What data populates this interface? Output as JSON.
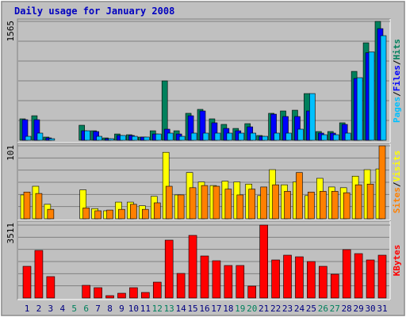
{
  "chart_data": [
    {
      "type": "bar",
      "title": "Daily usage for January 2008",
      "ylim": [
        0,
        1565
      ],
      "yticks": [
        1565
      ],
      "legend_separator": "/",
      "series": [
        {
          "name": "Hits",
          "color": "#00805c",
          "values": [
            282,
            323,
            42,
            0,
            0,
            198,
            125,
            31,
            83,
            73,
            42,
            125,
            782,
            125,
            355,
            407,
            282,
            209,
            156,
            219,
            63,
            355,
            386,
            396,
            615,
            115,
            115,
            230,
            907,
            1283,
            1565
          ]
        },
        {
          "name": "Files",
          "color": "#0000ff",
          "values": [
            271,
            271,
            31,
            0,
            0,
            125,
            115,
            21,
            63,
            63,
            42,
            83,
            146,
            83,
            323,
            386,
            230,
            156,
            125,
            177,
            52,
            344,
            313,
            313,
            386,
            94,
            94,
            209,
            814,
            1152,
            1470
          ]
        },
        {
          "name": "Pages",
          "color": "#00c0ff",
          "values": [
            52,
            94,
            21,
            0,
            0,
            125,
            52,
            21,
            63,
            52,
            42,
            83,
            94,
            52,
            94,
            94,
            94,
            94,
            94,
            94,
            52,
            94,
            94,
            146,
            615,
            73,
            73,
            94,
            824,
            1163,
            1377
          ]
        }
      ]
    },
    {
      "type": "bar",
      "ylim": [
        0,
        101
      ],
      "yticks": [
        101
      ],
      "legend_separator": "/",
      "series": [
        {
          "name": "Visits",
          "color": "#ffff00",
          "values": [
            33,
            45,
            20,
            0,
            0,
            40,
            14,
            11,
            23,
            23,
            18,
            31,
            92,
            33,
            64,
            51,
            46,
            52,
            51,
            48,
            32,
            68,
            47,
            51,
            32,
            56,
            44,
            43,
            59,
            68,
            69
          ]
        },
        {
          "name": "Sites",
          "color": "#ff8000",
          "values": [
            37,
            35,
            13,
            0,
            0,
            15,
            11,
            12,
            13,
            20,
            13,
            22,
            45,
            33,
            43,
            46,
            45,
            41,
            33,
            41,
            44,
            47,
            38,
            64,
            37,
            38,
            38,
            36,
            47,
            48,
            101
          ]
        }
      ]
    },
    {
      "type": "bar",
      "ylim": [
        0,
        3511
      ],
      "yticks": [
        3511
      ],
      "categories": [
        "1",
        "2",
        "3",
        "4",
        "5",
        "6",
        "7",
        "8",
        "9",
        "10",
        "11",
        "12",
        "13",
        "14",
        "15",
        "16",
        "17",
        "18",
        "19",
        "20",
        "21",
        "22",
        "23",
        "24",
        "25",
        "26",
        "27",
        "28",
        "29",
        "30",
        "31"
      ],
      "label_colors": [
        "#000080",
        "#000080",
        "#000080",
        "#000080",
        "#00805c",
        "#00805c",
        "#000080",
        "#000080",
        "#000080",
        "#000080",
        "#000080",
        "#00805c",
        "#00805c",
        "#000080",
        "#000080",
        "#000080",
        "#000080",
        "#000080",
        "#00805c",
        "#00805c",
        "#000080",
        "#000080",
        "#000080",
        "#000080",
        "#000080",
        "#00805c",
        "#00805c",
        "#000080",
        "#000080",
        "#000080",
        "#000080"
      ],
      "series": [
        {
          "name": "KBytes",
          "color": "#ff0000",
          "values": [
            1526,
            2290,
            1030,
            0,
            0,
            610,
            496,
            114,
            229,
            496,
            267,
            763,
            2786,
            1183,
            3015,
            2023,
            1794,
            1565,
            1565,
            572,
            3511,
            1832,
            2061,
            1984,
            1755,
            1526,
            1145,
            2328,
            2137,
            1832,
            2061
          ]
        }
      ]
    }
  ]
}
